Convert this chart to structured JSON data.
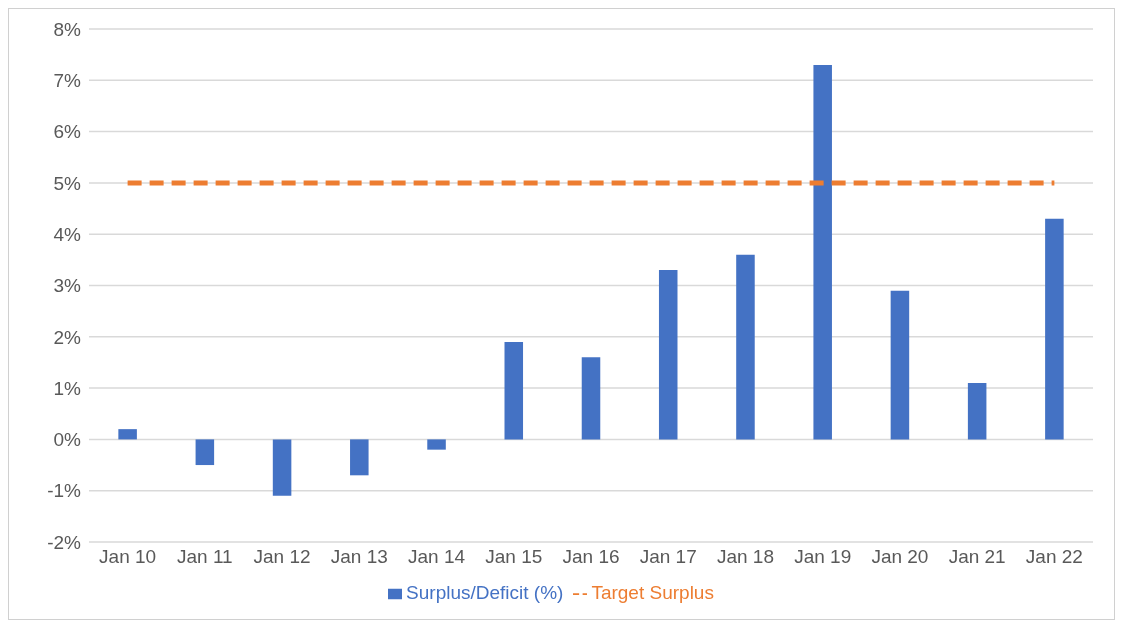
{
  "chart_data": {
    "type": "bar",
    "categories": [
      "Jan 10",
      "Jan 11",
      "Jan 12",
      "Jan 13",
      "Jan 14",
      "Jan 15",
      "Jan 16",
      "Jan 17",
      "Jan 18",
      "Jan 19",
      "Jan 20",
      "Jan 21",
      "Jan 22"
    ],
    "series": [
      {
        "name": "Surplus/Deficit (%)",
        "color": "#4472c4",
        "values": [
          0.2,
          -0.5,
          -1.1,
          -0.7,
          -0.2,
          1.9,
          1.6,
          3.3,
          3.6,
          7.3,
          2.9,
          1.1,
          4.3
        ]
      },
      {
        "name": "Target Surplus",
        "type": "line",
        "color": "#ed7d31",
        "line_style": "dashed",
        "marker": "none",
        "values": [
          5,
          5,
          5,
          5,
          5,
          5,
          5,
          5,
          5,
          5,
          5,
          5,
          5
        ]
      }
    ],
    "ylim": [
      -2,
      8
    ],
    "yticks": [
      {
        "value": -2,
        "label": "-2%"
      },
      {
        "value": -1,
        "label": "-1%"
      },
      {
        "value": 0,
        "label": "0%"
      },
      {
        "value": 1,
        "label": "1%"
      },
      {
        "value": 2,
        "label": "2%"
      },
      {
        "value": 3,
        "label": "3%"
      },
      {
        "value": 4,
        "label": "4%"
      },
      {
        "value": 5,
        "label": "5%"
      },
      {
        "value": 6,
        "label": "6%"
      },
      {
        "value": 7,
        "label": "7%"
      },
      {
        "value": 8,
        "label": "8%"
      }
    ],
    "grid": "y",
    "legend": "bottom"
  }
}
